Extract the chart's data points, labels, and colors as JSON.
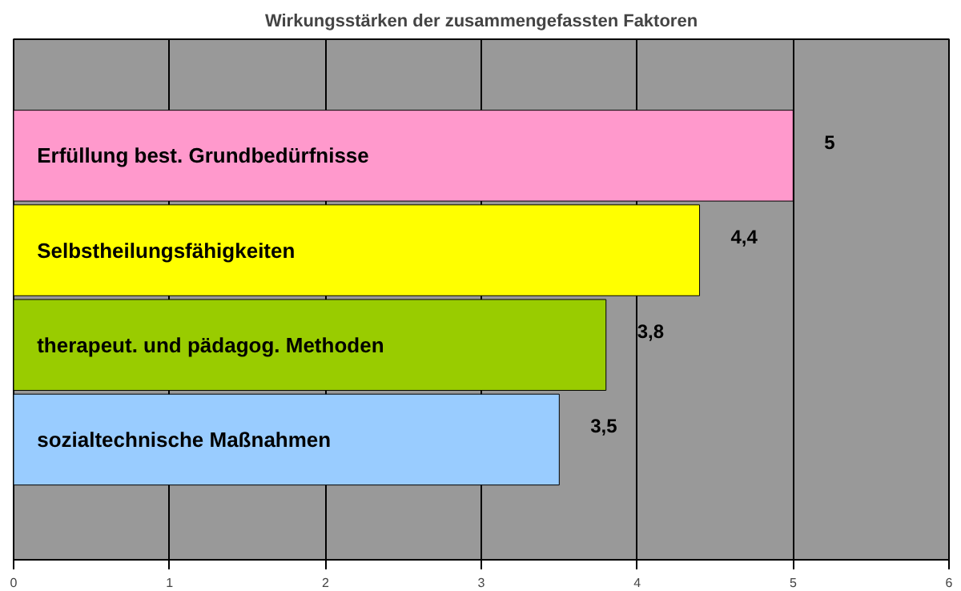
{
  "chart_data": {
    "type": "bar",
    "orientation": "horizontal",
    "title": "Wirkungsstärken der zusammengefassten Faktoren",
    "categories": [
      "Erfüllung best. Grundbedürfnisse",
      "Selbstheilungsfähigkeiten",
      "therapeut. und pädagog. Methoden",
      "sozialtechnische Maßnahmen"
    ],
    "values": [
      5,
      4.4,
      3.8,
      3.5
    ],
    "colors": [
      "#ff99cc",
      "#ffff00",
      "#99cc00",
      "#99ccff"
    ],
    "value_labels": [
      "5",
      "4,4",
      "3,8",
      "3,5"
    ],
    "xlim": [
      0,
      6
    ],
    "xticks": [
      0,
      1,
      2,
      3,
      4,
      5,
      6
    ],
    "grid": "x"
  }
}
